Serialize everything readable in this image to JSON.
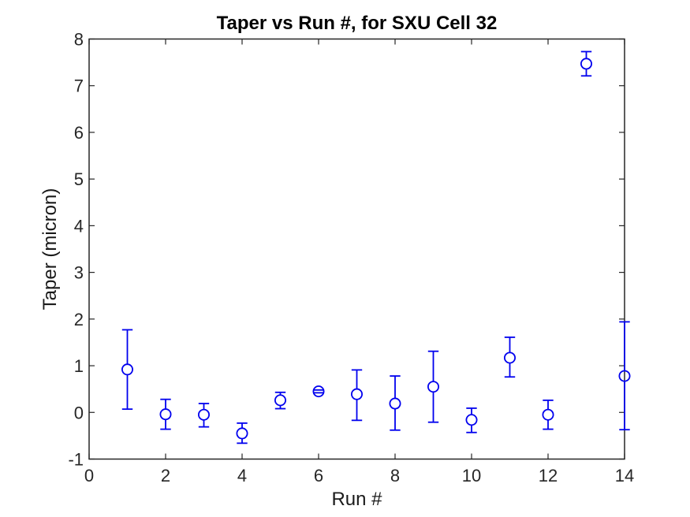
{
  "figure": {
    "background": "#FFFFFF"
  },
  "chart_data": {
    "type": "scatter",
    "title": "Taper vs Run #, for SXU Cell 32",
    "xlabel": "Run #",
    "ylabel": "Taper (micron)",
    "xlim": [
      0,
      14
    ],
    "ylim": [
      -1,
      8
    ],
    "xticks": [
      0,
      2,
      4,
      6,
      8,
      10,
      12,
      14
    ],
    "yticks": [
      -1,
      0,
      1,
      2,
      3,
      4,
      5,
      6,
      7,
      8
    ],
    "grid": false,
    "legend": null,
    "marker": "open-circle",
    "error_bars": "vertical",
    "colors": {
      "series": "#0000EE",
      "axis": "#262626",
      "tick_label": "#262626",
      "title": "#000000"
    },
    "series": [
      {
        "name": "Taper",
        "x": [
          1,
          2,
          3,
          4,
          5,
          6,
          7,
          8,
          9,
          10,
          11,
          12,
          13,
          14
        ],
        "y": [
          0.92,
          -0.04,
          -0.05,
          -0.45,
          0.26,
          0.45,
          0.39,
          0.19,
          0.55,
          -0.16,
          1.17,
          -0.05,
          7.47,
          0.78
        ],
        "y_err_low": [
          0.07,
          -0.36,
          -0.31,
          -0.66,
          0.08,
          0.42,
          -0.17,
          -0.38,
          -0.21,
          -0.43,
          0.76,
          -0.36,
          7.21,
          -0.37
        ],
        "y_err_high": [
          1.77,
          0.28,
          0.19,
          -0.23,
          0.43,
          0.48,
          0.91,
          0.78,
          1.31,
          0.09,
          1.61,
          0.26,
          7.73,
          1.94
        ]
      }
    ]
  }
}
